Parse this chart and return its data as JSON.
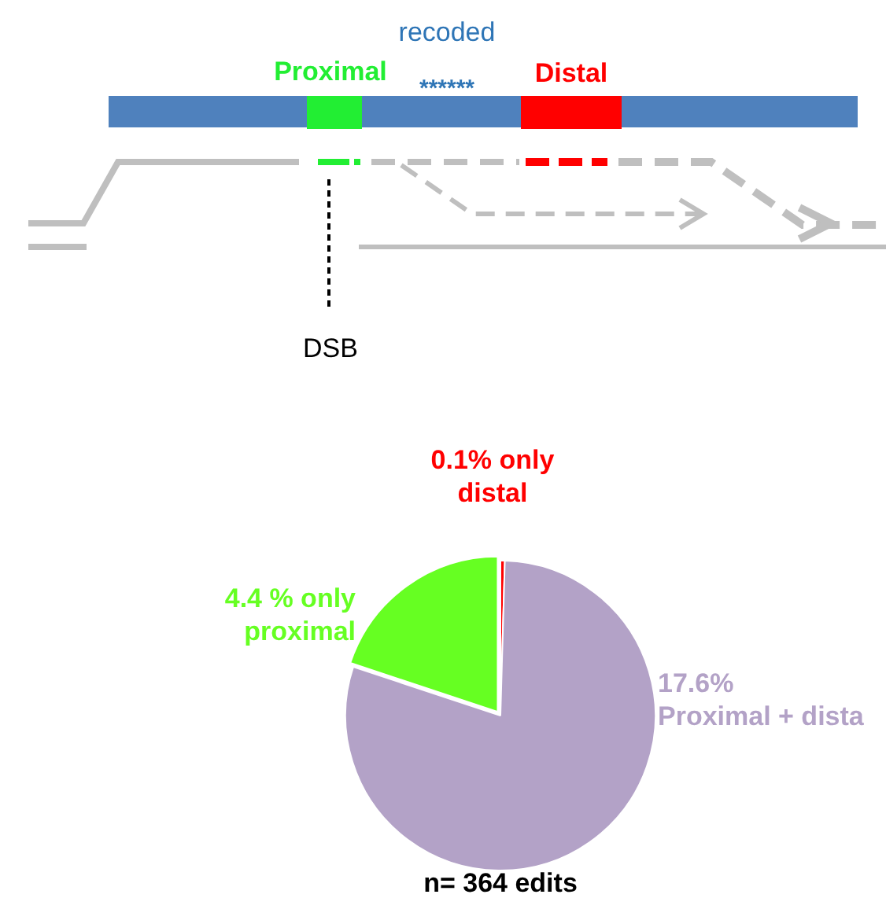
{
  "chart_data": {
    "type": "pie",
    "categories": [
      "only distal",
      "Proximal + dista",
      "only proximal"
    ],
    "values": [
      0.1,
      17.6,
      4.4
    ],
    "colors": [
      "#ff0000",
      "#b3a2c7",
      "#66ff22"
    ],
    "value_labels": [
      "0.1%",
      "17.6%",
      "4.4 %"
    ],
    "annotations": [
      "recoded",
      "Proximal",
      "******",
      "Distal",
      "DSB",
      "n= 364 edits"
    ]
  }
}
